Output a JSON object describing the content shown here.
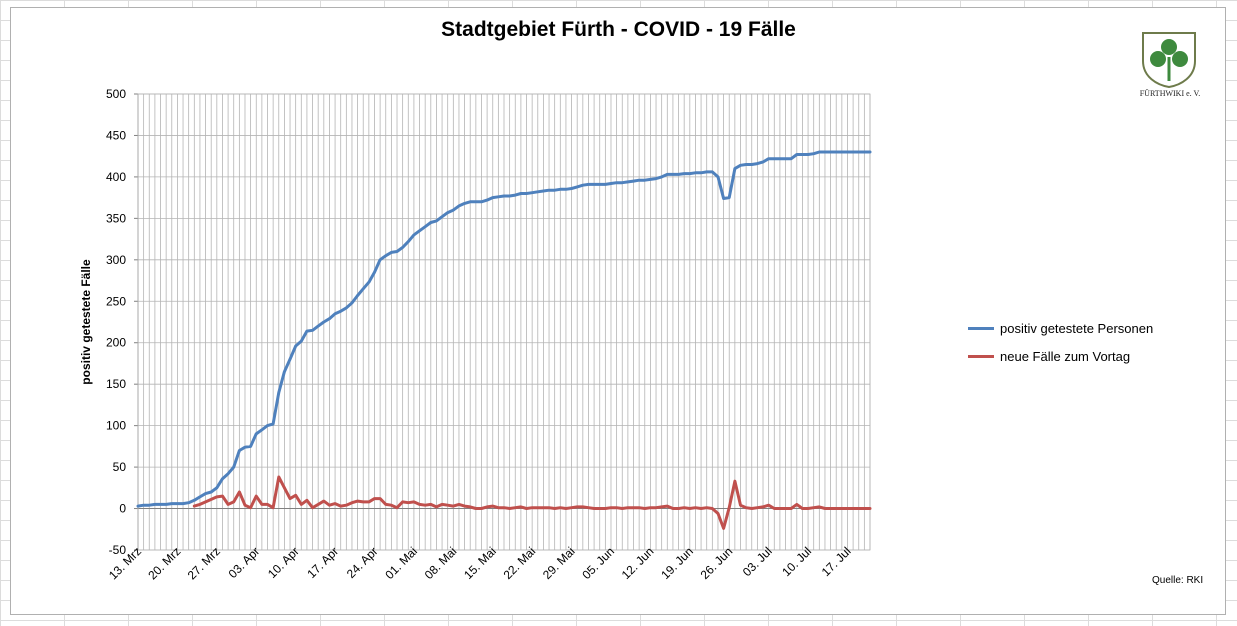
{
  "chart_data": {
    "type": "line",
    "title": "Stadtgebiet Fürth - COVID - 19 Fälle",
    "ylabel": "positiv getestete Fälle",
    "xlabel": "",
    "ylim": [
      -50,
      500
    ],
    "yticks": [
      -50,
      0,
      50,
      100,
      150,
      200,
      250,
      300,
      350,
      400,
      450,
      500
    ],
    "x_start": "2020-03-13",
    "x_end": "2020-07-21",
    "x_tick_labels": [
      "13. Mrz",
      "20. Mrz",
      "27. Mrz",
      "03. Apr",
      "10. Apr",
      "17. Apr",
      "24. Apr",
      "01. Mai",
      "08. Mai",
      "15. Mai",
      "22. Mai",
      "29. Mai",
      "05. Jun",
      "12. Jun",
      "19. Jun",
      "26. Jun",
      "03. Jul",
      "10. Jul",
      "17. Jul"
    ],
    "grid": true,
    "legend_position": "right",
    "series": [
      {
        "name": "positiv getestete Personen",
        "color": "#4f81bd",
        "points": [
          [
            "2020-03-13",
            3
          ],
          [
            "2020-03-14",
            4
          ],
          [
            "2020-03-15",
            4
          ],
          [
            "2020-03-16",
            5
          ],
          [
            "2020-03-17",
            5
          ],
          [
            "2020-03-18",
            5
          ],
          [
            "2020-03-19",
            6
          ],
          [
            "2020-03-20",
            6
          ],
          [
            "2020-03-21",
            6
          ],
          [
            "2020-03-22",
            7
          ],
          [
            "2020-03-23",
            10
          ],
          [
            "2020-03-24",
            14
          ],
          [
            "2020-03-25",
            18
          ],
          [
            "2020-03-26",
            20
          ],
          [
            "2020-03-27",
            25
          ],
          [
            "2020-03-28",
            36
          ],
          [
            "2020-03-29",
            42
          ],
          [
            "2020-03-30",
            50
          ],
          [
            "2020-03-31",
            70
          ],
          [
            "2020-04-01",
            74
          ],
          [
            "2020-04-02",
            75
          ],
          [
            "2020-04-03",
            90
          ],
          [
            "2020-04-04",
            95
          ],
          [
            "2020-04-05",
            100
          ],
          [
            "2020-04-06",
            102
          ],
          [
            "2020-04-07",
            140
          ],
          [
            "2020-04-08",
            165
          ],
          [
            "2020-04-09",
            180
          ],
          [
            "2020-04-10",
            196
          ],
          [
            "2020-04-11",
            202
          ],
          [
            "2020-04-12",
            214
          ],
          [
            "2020-04-13",
            215
          ],
          [
            "2020-04-14",
            220
          ],
          [
            "2020-04-15",
            225
          ],
          [
            "2020-04-16",
            229
          ],
          [
            "2020-04-17",
            235
          ],
          [
            "2020-04-18",
            238
          ],
          [
            "2020-04-19",
            242
          ],
          [
            "2020-04-20",
            248
          ],
          [
            "2020-04-21",
            257
          ],
          [
            "2020-04-22",
            265
          ],
          [
            "2020-04-23",
            273
          ],
          [
            "2020-04-24",
            285
          ],
          [
            "2020-04-25",
            300
          ],
          [
            "2020-04-26",
            305
          ],
          [
            "2020-04-27",
            309
          ],
          [
            "2020-04-28",
            310
          ],
          [
            "2020-04-29",
            315
          ],
          [
            "2020-04-30",
            322
          ],
          [
            "2020-05-01",
            330
          ],
          [
            "2020-05-02",
            335
          ],
          [
            "2020-05-03",
            340
          ],
          [
            "2020-05-04",
            345
          ],
          [
            "2020-05-05",
            347
          ],
          [
            "2020-05-06",
            352
          ],
          [
            "2020-05-07",
            357
          ],
          [
            "2020-05-08",
            360
          ],
          [
            "2020-05-09",
            365
          ],
          [
            "2020-05-10",
            368
          ],
          [
            "2020-05-11",
            370
          ],
          [
            "2020-05-12",
            370
          ],
          [
            "2020-05-13",
            370
          ],
          [
            "2020-05-14",
            372
          ],
          [
            "2020-05-15",
            375
          ],
          [
            "2020-05-16",
            376
          ],
          [
            "2020-05-17",
            377
          ],
          [
            "2020-05-18",
            377
          ],
          [
            "2020-05-19",
            378
          ],
          [
            "2020-05-20",
            380
          ],
          [
            "2020-05-21",
            380
          ],
          [
            "2020-05-22",
            381
          ],
          [
            "2020-05-23",
            382
          ],
          [
            "2020-05-24",
            383
          ],
          [
            "2020-05-25",
            384
          ],
          [
            "2020-05-26",
            384
          ],
          [
            "2020-05-27",
            385
          ],
          [
            "2020-05-28",
            385
          ],
          [
            "2020-05-29",
            386
          ],
          [
            "2020-05-30",
            388
          ],
          [
            "2020-05-31",
            390
          ],
          [
            "2020-06-01",
            391
          ],
          [
            "2020-06-02",
            391
          ],
          [
            "2020-06-03",
            391
          ],
          [
            "2020-06-04",
            391
          ],
          [
            "2020-06-05",
            392
          ],
          [
            "2020-06-06",
            393
          ],
          [
            "2020-06-07",
            393
          ],
          [
            "2020-06-08",
            394
          ],
          [
            "2020-06-09",
            395
          ],
          [
            "2020-06-10",
            396
          ],
          [
            "2020-06-11",
            396
          ],
          [
            "2020-06-12",
            397
          ],
          [
            "2020-06-13",
            398
          ],
          [
            "2020-06-14",
            400
          ],
          [
            "2020-06-15",
            403
          ],
          [
            "2020-06-16",
            403
          ],
          [
            "2020-06-17",
            403
          ],
          [
            "2020-06-18",
            404
          ],
          [
            "2020-06-19",
            404
          ],
          [
            "2020-06-20",
            405
          ],
          [
            "2020-06-21",
            405
          ],
          [
            "2020-06-22",
            406
          ],
          [
            "2020-06-23",
            406
          ],
          [
            "2020-06-24",
            400
          ],
          [
            "2020-06-25",
            374
          ],
          [
            "2020-06-26",
            375
          ],
          [
            "2020-06-27",
            410
          ],
          [
            "2020-06-28",
            414
          ],
          [
            "2020-06-29",
            415
          ],
          [
            "2020-06-30",
            415
          ],
          [
            "2020-07-01",
            416
          ],
          [
            "2020-07-02",
            418
          ],
          [
            "2020-07-03",
            422
          ],
          [
            "2020-07-04",
            422
          ],
          [
            "2020-07-05",
            422
          ],
          [
            "2020-07-06",
            422
          ],
          [
            "2020-07-07",
            422
          ],
          [
            "2020-07-08",
            427
          ],
          [
            "2020-07-09",
            427
          ],
          [
            "2020-07-10",
            427
          ],
          [
            "2020-07-11",
            428
          ],
          [
            "2020-07-12",
            430
          ],
          [
            "2020-07-13",
            430
          ],
          [
            "2020-07-14",
            430
          ],
          [
            "2020-07-15",
            430
          ],
          [
            "2020-07-16",
            430
          ],
          [
            "2020-07-17",
            430
          ],
          [
            "2020-07-18",
            430
          ],
          [
            "2020-07-19",
            430
          ],
          [
            "2020-07-20",
            430
          ],
          [
            "2020-07-21",
            430
          ]
        ]
      },
      {
        "name": "neue Fälle zum Vortag",
        "color": "#c0504d",
        "points": [
          [
            "2020-03-23",
            3
          ],
          [
            "2020-03-24",
            5
          ],
          [
            "2020-03-25",
            8
          ],
          [
            "2020-03-26",
            11
          ],
          [
            "2020-03-27",
            14
          ],
          [
            "2020-03-28",
            15
          ],
          [
            "2020-03-29",
            5
          ],
          [
            "2020-03-30",
            8
          ],
          [
            "2020-03-31",
            20
          ],
          [
            "2020-04-01",
            4
          ],
          [
            "2020-04-02",
            1
          ],
          [
            "2020-04-03",
            15
          ],
          [
            "2020-04-04",
            5
          ],
          [
            "2020-04-05",
            5
          ],
          [
            "2020-04-06",
            1
          ],
          [
            "2020-04-07",
            38
          ],
          [
            "2020-04-08",
            25
          ],
          [
            "2020-04-09",
            12
          ],
          [
            "2020-04-10",
            16
          ],
          [
            "2020-04-11",
            5
          ],
          [
            "2020-04-12",
            10
          ],
          [
            "2020-04-13",
            1
          ],
          [
            "2020-04-14",
            5
          ],
          [
            "2020-04-15",
            9
          ],
          [
            "2020-04-16",
            4
          ],
          [
            "2020-04-17",
            6
          ],
          [
            "2020-04-18",
            3
          ],
          [
            "2020-04-19",
            4
          ],
          [
            "2020-04-20",
            7
          ],
          [
            "2020-04-21",
            9
          ],
          [
            "2020-04-22",
            8
          ],
          [
            "2020-04-23",
            8
          ],
          [
            "2020-04-24",
            12
          ],
          [
            "2020-04-25",
            12
          ],
          [
            "2020-04-26",
            5
          ],
          [
            "2020-04-27",
            4
          ],
          [
            "2020-04-28",
            1
          ],
          [
            "2020-04-29",
            8
          ],
          [
            "2020-04-30",
            7
          ],
          [
            "2020-05-01",
            8
          ],
          [
            "2020-05-02",
            5
          ],
          [
            "2020-05-03",
            4
          ],
          [
            "2020-05-04",
            5
          ],
          [
            "2020-05-05",
            2
          ],
          [
            "2020-05-06",
            5
          ],
          [
            "2020-05-07",
            4
          ],
          [
            "2020-05-08",
            3
          ],
          [
            "2020-05-09",
            5
          ],
          [
            "2020-05-10",
            3
          ],
          [
            "2020-05-11",
            2
          ],
          [
            "2020-05-12",
            0
          ],
          [
            "2020-05-13",
            0
          ],
          [
            "2020-05-14",
            2
          ],
          [
            "2020-05-15",
            3
          ],
          [
            "2020-05-16",
            1
          ],
          [
            "2020-05-17",
            1
          ],
          [
            "2020-05-18",
            0
          ],
          [
            "2020-05-19",
            1
          ],
          [
            "2020-05-20",
            2
          ],
          [
            "2020-05-21",
            0
          ],
          [
            "2020-05-22",
            1
          ],
          [
            "2020-05-23",
            1
          ],
          [
            "2020-05-24",
            1
          ],
          [
            "2020-05-25",
            1
          ],
          [
            "2020-05-26",
            0
          ],
          [
            "2020-05-27",
            1
          ],
          [
            "2020-05-28",
            0
          ],
          [
            "2020-05-29",
            1
          ],
          [
            "2020-05-30",
            2
          ],
          [
            "2020-05-31",
            2
          ],
          [
            "2020-06-01",
            1
          ],
          [
            "2020-06-02",
            0
          ],
          [
            "2020-06-03",
            0
          ],
          [
            "2020-06-04",
            0
          ],
          [
            "2020-06-05",
            1
          ],
          [
            "2020-06-06",
            1
          ],
          [
            "2020-06-07",
            0
          ],
          [
            "2020-06-08",
            1
          ],
          [
            "2020-06-09",
            1
          ],
          [
            "2020-06-10",
            1
          ],
          [
            "2020-06-11",
            0
          ],
          [
            "2020-06-12",
            1
          ],
          [
            "2020-06-13",
            1
          ],
          [
            "2020-06-14",
            2
          ],
          [
            "2020-06-15",
            3
          ],
          [
            "2020-06-16",
            0
          ],
          [
            "2020-06-17",
            0
          ],
          [
            "2020-06-18",
            1
          ],
          [
            "2020-06-19",
            0
          ],
          [
            "2020-06-20",
            1
          ],
          [
            "2020-06-21",
            0
          ],
          [
            "2020-06-22",
            1
          ],
          [
            "2020-06-23",
            0
          ],
          [
            "2020-06-24",
            -6
          ],
          [
            "2020-06-25",
            -24
          ],
          [
            "2020-06-26",
            1
          ],
          [
            "2020-06-27",
            33
          ],
          [
            "2020-06-28",
            4
          ],
          [
            "2020-06-29",
            1
          ],
          [
            "2020-06-30",
            0
          ],
          [
            "2020-07-01",
            1
          ],
          [
            "2020-07-02",
            2
          ],
          [
            "2020-07-03",
            4
          ],
          [
            "2020-07-04",
            0
          ],
          [
            "2020-07-05",
            0
          ],
          [
            "2020-07-06",
            0
          ],
          [
            "2020-07-07",
            0
          ],
          [
            "2020-07-08",
            5
          ],
          [
            "2020-07-09",
            0
          ],
          [
            "2020-07-10",
            0
          ],
          [
            "2020-07-11",
            1
          ],
          [
            "2020-07-12",
            2
          ],
          [
            "2020-07-13",
            0
          ],
          [
            "2020-07-14",
            0
          ],
          [
            "2020-07-15",
            0
          ],
          [
            "2020-07-16",
            0
          ],
          [
            "2020-07-17",
            0
          ],
          [
            "2020-07-18",
            0
          ],
          [
            "2020-07-19",
            0
          ],
          [
            "2020-07-20",
            0
          ],
          [
            "2020-07-21",
            0
          ]
        ]
      }
    ]
  },
  "source_label": "Quelle: RKI",
  "logo": {
    "caption": "FÜRTHWIKI e. V.",
    "shield_color": "#6e7b4b",
    "leaf_color": "#3e8a3e"
  },
  "colors": {
    "axis": "#808080",
    "grid": "#b4b4b4"
  }
}
